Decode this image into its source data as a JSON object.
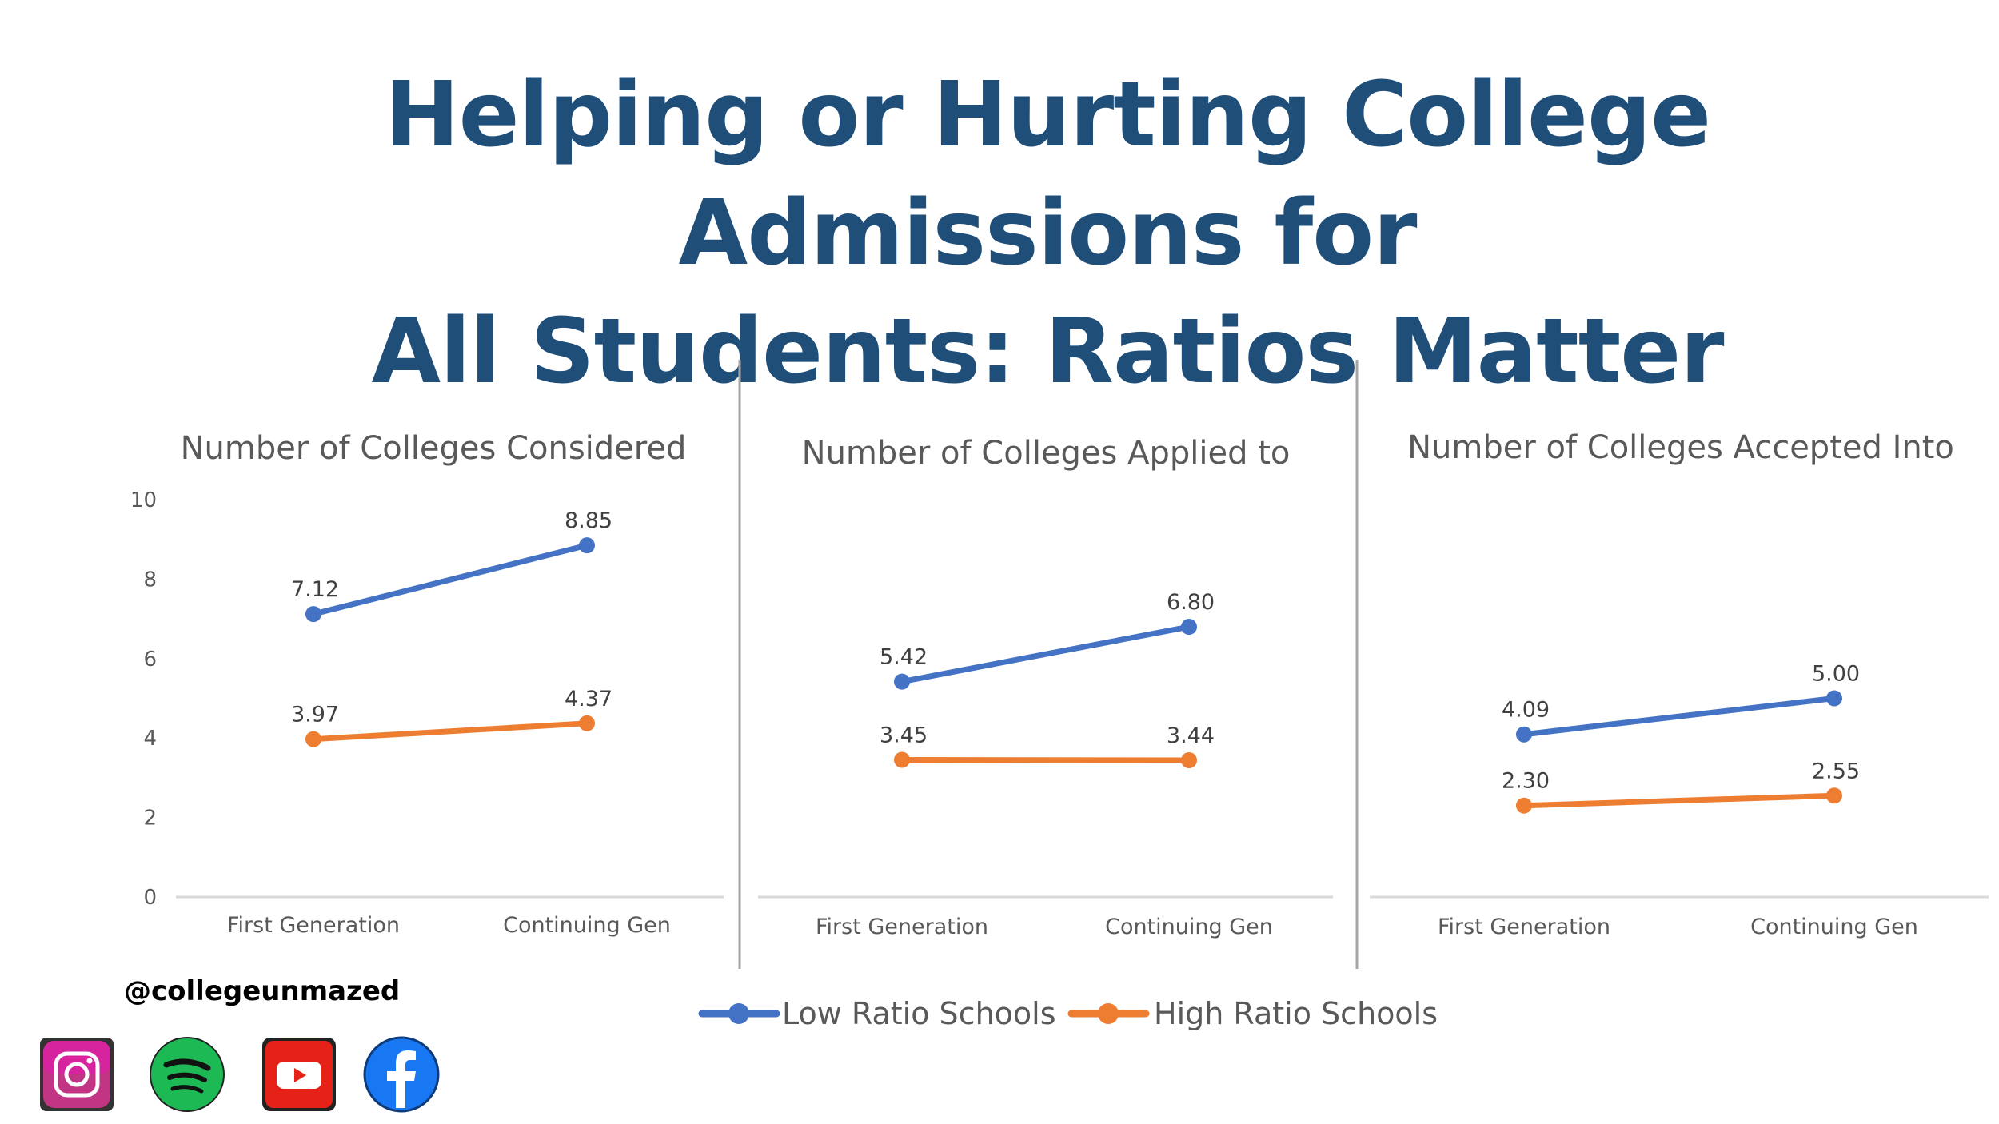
{
  "title": {
    "line1": "Helping or Hurting College Admissions for",
    "line2": "All Students: Ratios Matter"
  },
  "colors": {
    "low": "#4472c4",
    "high": "#ed7d31",
    "title": "#1f4e79",
    "axis_text": "#595959",
    "divider": "#a6a6a6"
  },
  "chart_data": [
    {
      "type": "line",
      "title": "Number of Colleges Considered",
      "categories": [
        "First Generation",
        "Continuing Gen"
      ],
      "series": [
        {
          "name": "Low Ratio Schools",
          "values": [
            7.12,
            8.85
          ],
          "labels": [
            "7.12",
            "8.85"
          ]
        },
        {
          "name": "High Ratio Schools",
          "values": [
            3.97,
            4.37
          ],
          "labels": [
            "3.97",
            "4.37"
          ]
        }
      ],
      "ylim": [
        0,
        10
      ],
      "yticks": [
        "0",
        "2",
        "4",
        "6",
        "8",
        "10"
      ],
      "show_y_axis": true
    },
    {
      "type": "line",
      "title": "Number of Colleges Applied to",
      "categories": [
        "First Generation",
        "Continuing Gen"
      ],
      "series": [
        {
          "name": "Low Ratio Schools",
          "values": [
            5.42,
            6.8
          ],
          "labels": [
            "5.42",
            "6.80"
          ]
        },
        {
          "name": "High Ratio Schools",
          "values": [
            3.45,
            3.44
          ],
          "labels": [
            "3.45",
            "3.44"
          ]
        }
      ],
      "ylim": [
        0,
        10
      ],
      "show_y_axis": false
    },
    {
      "type": "line",
      "title": "Number of Colleges Accepted Into",
      "categories": [
        "First Generation",
        "Continuing Gen"
      ],
      "series": [
        {
          "name": "Low Ratio Schools",
          "values": [
            4.09,
            5.0
          ],
          "labels": [
            "4.09",
            "5.00"
          ]
        },
        {
          "name": "High Ratio Schools",
          "values": [
            2.3,
            2.55
          ],
          "labels": [
            "2.30",
            "2.55"
          ]
        }
      ],
      "ylim": [
        0,
        10
      ],
      "show_y_axis": false
    }
  ],
  "legend": {
    "items": [
      {
        "name": "Low Ratio Schools",
        "series": 0
      },
      {
        "name": "High Ratio Schools",
        "series": 1
      }
    ],
    "position": "bottom"
  },
  "footer": {
    "handle": "@collegeunmazed",
    "social_icons": [
      "instagram-icon",
      "spotify-icon",
      "youtube-icon",
      "facebook-icon"
    ]
  }
}
